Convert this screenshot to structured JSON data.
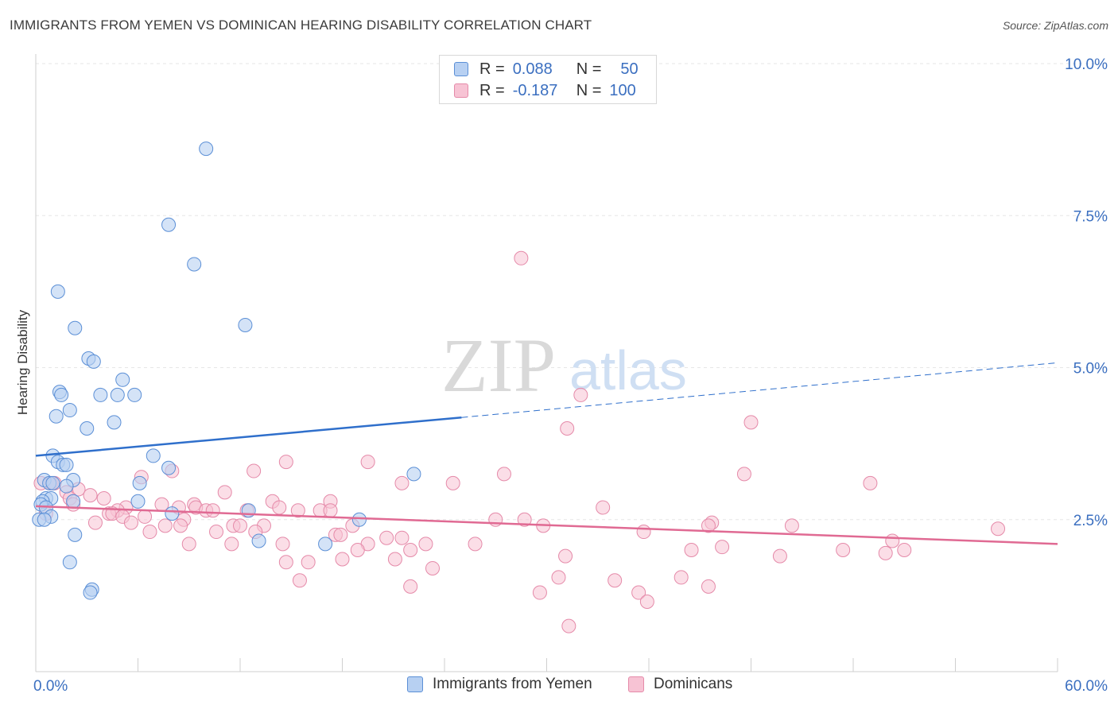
{
  "title": "IMMIGRANTS FROM YEMEN VS DOMINICAN HEARING DISABILITY CORRELATION CHART",
  "source": "Source: ZipAtlas.com",
  "watermark": {
    "zip": "ZIP",
    "atlas": "atlas"
  },
  "colors": {
    "blue_fill": "#b7d0f2",
    "blue_stroke": "#5b8fd6",
    "blue_line": "#2f6fcb",
    "pink_fill": "#f7c3d4",
    "pink_stroke": "#e58aa9",
    "pink_line": "#e06a93",
    "axis_label": "#3b6fc0"
  },
  "legend": {
    "r_label": "R =",
    "n_label": "N =",
    "rows": [
      {
        "r": "0.088",
        "n": "50"
      },
      {
        "r": "-0.187",
        "n": "100"
      }
    ]
  },
  "series_labels": [
    "Immigrants from Yemen",
    "Dominicans"
  ],
  "chart_data": {
    "type": "scatter",
    "title": "IMMIGRANTS FROM YEMEN VS DOMINICAN HEARING DISABILITY CORRELATION CHART",
    "xlabel": "",
    "ylabel": "Hearing Disability",
    "x_unit": "%",
    "xlim": [
      0,
      60
    ],
    "ylim": [
      0,
      10.5
    ],
    "x_ticks": [
      "0.0%",
      "60.0%"
    ],
    "y_ticks": [
      {
        "value": 2.5,
        "label": "2.5%"
      },
      {
        "value": 5.0,
        "label": "5.0%"
      },
      {
        "value": 7.5,
        "label": "7.5%"
      },
      {
        "value": 10.0,
        "label": "10.0%"
      }
    ],
    "grid": true,
    "legend_position": "top-center",
    "series": [
      {
        "name": "Immigrants from Yemen",
        "r": 0.088,
        "n": 50,
        "trend": {
          "x_solid": [
            0,
            25
          ],
          "y_solid": [
            3.55,
            4.18
          ],
          "x_dashed": [
            25,
            60
          ],
          "y_dashed": [
            4.18,
            5.08
          ]
        },
        "points": [
          [
            10.0,
            8.6
          ],
          [
            7.8,
            7.35
          ],
          [
            9.3,
            6.7
          ],
          [
            1.3,
            6.25
          ],
          [
            12.3,
            5.7
          ],
          [
            2.3,
            5.65
          ],
          [
            3.1,
            5.15
          ],
          [
            3.4,
            5.1
          ],
          [
            5.1,
            4.8
          ],
          [
            1.4,
            4.6
          ],
          [
            1.5,
            4.55
          ],
          [
            3.8,
            4.55
          ],
          [
            4.8,
            4.55
          ],
          [
            5.8,
            4.55
          ],
          [
            2.0,
            4.3
          ],
          [
            1.2,
            4.2
          ],
          [
            4.6,
            4.1
          ],
          [
            3.0,
            4.0
          ],
          [
            1.0,
            3.55
          ],
          [
            6.9,
            3.55
          ],
          [
            1.3,
            3.45
          ],
          [
            1.6,
            3.4
          ],
          [
            1.8,
            3.4
          ],
          [
            7.8,
            3.35
          ],
          [
            22.2,
            3.25
          ],
          [
            0.5,
            3.15
          ],
          [
            2.2,
            3.15
          ],
          [
            6.1,
            3.1
          ],
          [
            0.8,
            3.1
          ],
          [
            1.0,
            3.1
          ],
          [
            1.8,
            3.05
          ],
          [
            0.6,
            2.85
          ],
          [
            0.9,
            2.85
          ],
          [
            0.4,
            2.8
          ],
          [
            2.2,
            2.8
          ],
          [
            6.0,
            2.8
          ],
          [
            0.3,
            2.75
          ],
          [
            0.6,
            2.7
          ],
          [
            12.5,
            2.65
          ],
          [
            8.0,
            2.6
          ],
          [
            0.9,
            2.55
          ],
          [
            19.0,
            2.5
          ],
          [
            0.2,
            2.5
          ],
          [
            0.5,
            2.5
          ],
          [
            2.3,
            2.25
          ],
          [
            13.1,
            2.15
          ],
          [
            17.0,
            2.1
          ],
          [
            2.0,
            1.8
          ],
          [
            3.3,
            1.35
          ],
          [
            3.2,
            1.3
          ]
        ]
      },
      {
        "name": "Dominicans",
        "r": -0.187,
        "n": 100,
        "trend": {
          "x_solid": [
            0,
            60
          ],
          "y_solid": [
            2.72,
            2.1
          ]
        },
        "points": [
          [
            28.5,
            6.8
          ],
          [
            32.0,
            4.55
          ],
          [
            42.0,
            4.1
          ],
          [
            31.2,
            4.0
          ],
          [
            14.7,
            3.45
          ],
          [
            19.5,
            3.45
          ],
          [
            12.8,
            3.3
          ],
          [
            8.0,
            3.3
          ],
          [
            27.5,
            3.25
          ],
          [
            41.6,
            3.25
          ],
          [
            6.2,
            3.2
          ],
          [
            21.5,
            3.1
          ],
          [
            24.5,
            3.1
          ],
          [
            49.0,
            3.1
          ],
          [
            0.3,
            3.1
          ],
          [
            0.9,
            3.1
          ],
          [
            1.1,
            3.1
          ],
          [
            2.5,
            3.0
          ],
          [
            1.8,
            2.95
          ],
          [
            11.1,
            2.95
          ],
          [
            3.2,
            2.9
          ],
          [
            4.0,
            2.85
          ],
          [
            2.0,
            2.85
          ],
          [
            13.9,
            2.8
          ],
          [
            17.3,
            2.8
          ],
          [
            2.2,
            2.75
          ],
          [
            7.4,
            2.75
          ],
          [
            9.3,
            2.75
          ],
          [
            8.4,
            2.7
          ],
          [
            9.4,
            2.7
          ],
          [
            14.3,
            2.7
          ],
          [
            5.3,
            2.7
          ],
          [
            33.3,
            2.7
          ],
          [
            4.8,
            2.65
          ],
          [
            10.0,
            2.65
          ],
          [
            10.4,
            2.65
          ],
          [
            12.4,
            2.65
          ],
          [
            15.4,
            2.65
          ],
          [
            16.7,
            2.65
          ],
          [
            17.3,
            2.65
          ],
          [
            4.3,
            2.6
          ],
          [
            4.5,
            2.6
          ],
          [
            5.1,
            2.55
          ],
          [
            6.4,
            2.55
          ],
          [
            8.7,
            2.5
          ],
          [
            27.0,
            2.5
          ],
          [
            28.7,
            2.5
          ],
          [
            39.7,
            2.45
          ],
          [
            3.5,
            2.45
          ],
          [
            5.6,
            2.45
          ],
          [
            7.6,
            2.4
          ],
          [
            8.5,
            2.4
          ],
          [
            11.6,
            2.4
          ],
          [
            12.0,
            2.4
          ],
          [
            13.4,
            2.4
          ],
          [
            18.6,
            2.4
          ],
          [
            29.8,
            2.4
          ],
          [
            39.5,
            2.4
          ],
          [
            44.4,
            2.4
          ],
          [
            56.5,
            2.35
          ],
          [
            6.7,
            2.3
          ],
          [
            10.6,
            2.3
          ],
          [
            12.9,
            2.3
          ],
          [
            35.7,
            2.3
          ],
          [
            17.6,
            2.25
          ],
          [
            17.9,
            2.25
          ],
          [
            20.6,
            2.2
          ],
          [
            21.5,
            2.2
          ],
          [
            50.3,
            2.15
          ],
          [
            9.0,
            2.1
          ],
          [
            11.5,
            2.1
          ],
          [
            19.5,
            2.1
          ],
          [
            22.9,
            2.1
          ],
          [
            25.8,
            2.1
          ],
          [
            14.5,
            2.1
          ],
          [
            40.3,
            2.05
          ],
          [
            22.0,
            2.0
          ],
          [
            47.4,
            2.0
          ],
          [
            51.0,
            2.0
          ],
          [
            18.9,
            2.0
          ],
          [
            38.5,
            2.0
          ],
          [
            49.9,
            1.95
          ],
          [
            31.1,
            1.9
          ],
          [
            43.7,
            1.9
          ],
          [
            21.1,
            1.85
          ],
          [
            18.0,
            1.85
          ],
          [
            14.7,
            1.8
          ],
          [
            16.0,
            1.8
          ],
          [
            23.3,
            1.7
          ],
          [
            30.7,
            1.55
          ],
          [
            37.9,
            1.55
          ],
          [
            15.5,
            1.5
          ],
          [
            34.0,
            1.5
          ],
          [
            22.0,
            1.4
          ],
          [
            39.5,
            1.4
          ],
          [
            29.6,
            1.3
          ],
          [
            35.4,
            1.3
          ],
          [
            35.9,
            1.15
          ],
          [
            31.3,
            0.75
          ],
          [
            0.6,
            2.6
          ]
        ]
      }
    ]
  }
}
